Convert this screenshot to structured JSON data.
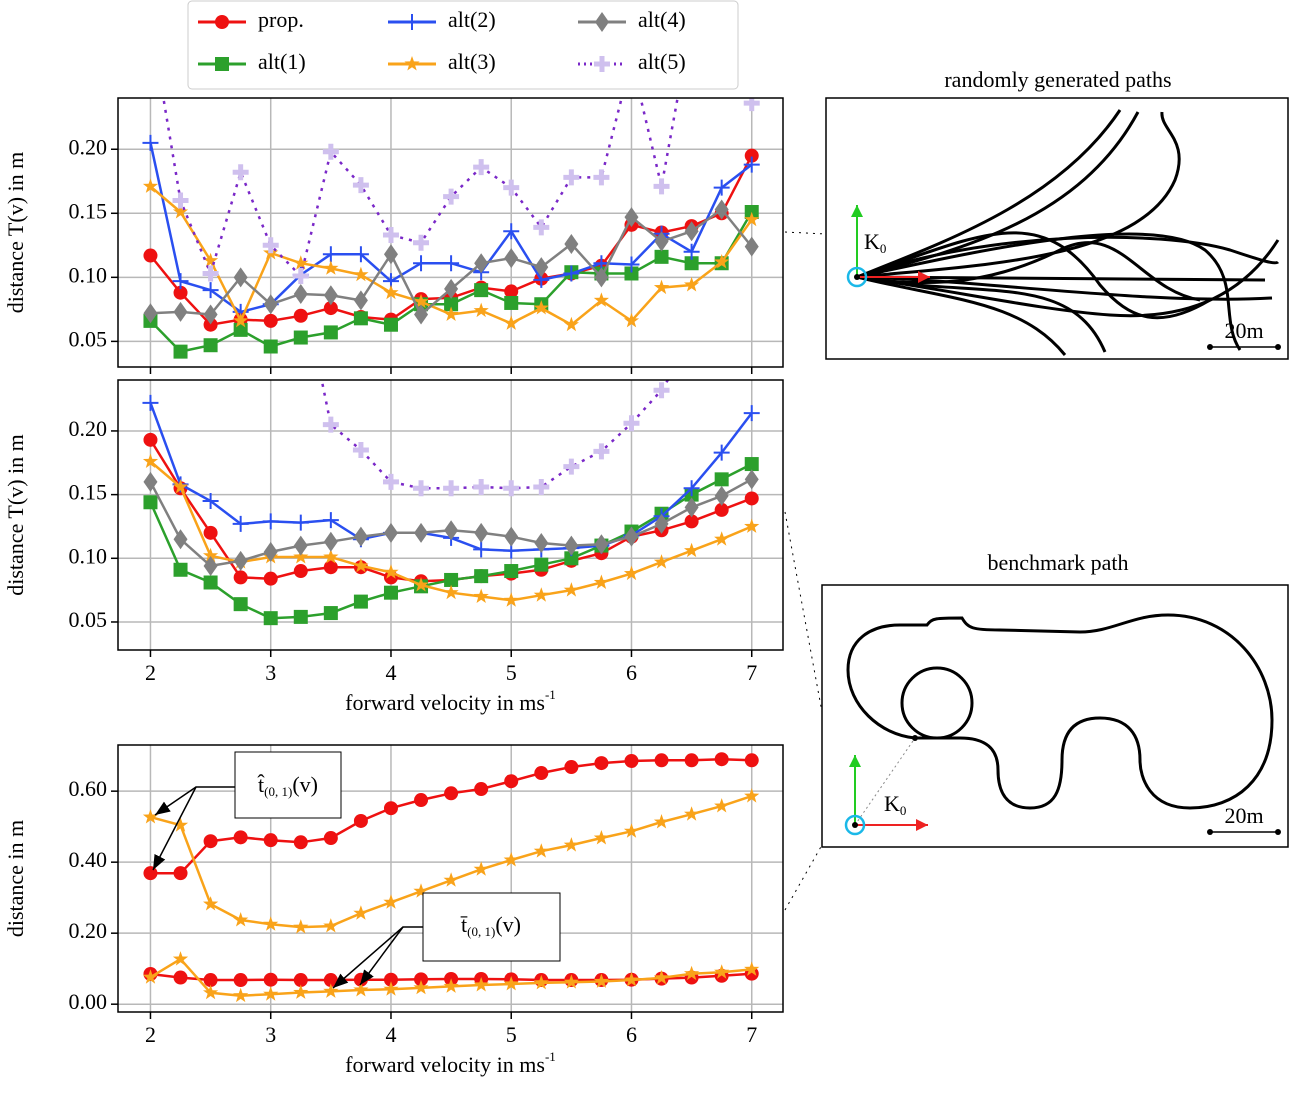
{
  "chart_data": [
    {
      "type": "line",
      "ylabel": "distance T(v) in m",
      "xlim": [
        1.73,
        7.26
      ],
      "ylim": [
        0.03,
        0.24
      ],
      "xticks": [
        2,
        3,
        4,
        5,
        6,
        7
      ],
      "show_xtick_labels": false,
      "yticks": [
        {
          "value": 0.05,
          "label": "0.05"
        },
        {
          "value": 0.1,
          "label": "0.10"
        },
        {
          "value": 0.15,
          "label": "0.15"
        },
        {
          "value": 0.2,
          "label": "0.20"
        }
      ],
      "grid": true,
      "x": [
        2,
        2.25,
        2.5,
        2.75,
        3,
        3.25,
        3.5,
        3.75,
        4,
        4.25,
        4.5,
        4.75,
        5,
        5.25,
        5.5,
        5.75,
        6,
        6.25,
        6.5,
        6.75,
        7
      ],
      "series": [
        {
          "name": "prop.",
          "color": "#ee1111",
          "marker": "circle",
          "values": [
            0.117,
            0.088,
            0.063,
            0.067,
            0.066,
            0.07,
            0.076,
            0.069,
            0.067,
            0.083,
            0.084,
            0.092,
            0.089,
            0.099,
            0.103,
            0.109,
            0.141,
            0.135,
            0.14,
            0.15,
            0.195
          ]
        },
        {
          "name": "alt(1)",
          "color": "#2ca02c",
          "marker": "square",
          "values": [
            0.066,
            0.042,
            0.047,
            0.059,
            0.046,
            0.053,
            0.057,
            0.068,
            0.063,
            0.079,
            0.079,
            0.09,
            0.08,
            0.079,
            0.104,
            0.103,
            0.103,
            0.116,
            0.111,
            0.111,
            0.151
          ]
        },
        {
          "name": "alt(2)",
          "color": "#2a4ff0",
          "marker": "plus",
          "values": [
            0.205,
            0.097,
            0.09,
            0.073,
            0.079,
            0.102,
            0.118,
            0.118,
            0.097,
            0.111,
            0.111,
            0.104,
            0.136,
            0.098,
            0.103,
            0.111,
            0.11,
            0.134,
            0.12,
            0.17,
            0.188
          ]
        },
        {
          "name": "alt(3)",
          "color": "#f9a31a",
          "marker": "star",
          "values": [
            0.171,
            0.151,
            0.113,
            0.066,
            0.119,
            0.111,
            0.107,
            0.102,
            0.088,
            0.081,
            0.071,
            0.074,
            0.064,
            0.076,
            0.063,
            0.082,
            0.066,
            0.092,
            0.094,
            0.112,
            0.145
          ]
        },
        {
          "name": "alt(4)",
          "color": "#808080",
          "marker": "diamond",
          "values": [
            0.072,
            0.073,
            0.071,
            0.1,
            0.079,
            0.087,
            0.086,
            0.082,
            0.118,
            0.071,
            0.091,
            0.111,
            0.115,
            0.108,
            0.126,
            0.1,
            0.147,
            0.128,
            0.136,
            0.153,
            0.124
          ]
        },
        {
          "name": "alt(5)",
          "color": "#7a28c8",
          "marker": "thickplus",
          "marker_color": "#cfc0ee",
          "linestyle": "dotted",
          "values": [
            0.3,
            0.16,
            0.103,
            0.182,
            0.125,
            0.101,
            0.198,
            0.172,
            0.133,
            0.127,
            0.163,
            0.186,
            0.17,
            0.139,
            0.178,
            0.178,
            0.27,
            0.171,
            0.3,
            0.3,
            0.236
          ]
        }
      ]
    },
    {
      "type": "line",
      "ylabel": "distance T(v) in m",
      "xlabel": {
        "text": "forward velocity in ms",
        "superscript": "-1"
      },
      "xlim": [
        1.73,
        7.26
      ],
      "ylim": [
        0.028,
        0.24
      ],
      "xticks": [
        2,
        3,
        4,
        5,
        6,
        7
      ],
      "yticks": [
        {
          "value": 0.05,
          "label": "0.05"
        },
        {
          "value": 0.1,
          "label": "0.10"
        },
        {
          "value": 0.15,
          "label": "0.15"
        },
        {
          "value": 0.2,
          "label": "0.20"
        }
      ],
      "grid": true,
      "x": [
        2,
        2.25,
        2.5,
        2.75,
        3,
        3.25,
        3.5,
        3.75,
        4,
        4.25,
        4.5,
        4.75,
        5,
        5.25,
        5.5,
        5.75,
        6,
        6.25,
        6.5,
        6.75,
        7
      ],
      "series": [
        {
          "color": "#ee1111",
          "marker": "circle",
          "values": [
            0.193,
            0.155,
            0.12,
            0.085,
            0.084,
            0.09,
            0.093,
            0.093,
            0.085,
            0.082,
            0.083,
            0.086,
            0.088,
            0.091,
            0.098,
            0.104,
            0.117,
            0.122,
            0.129,
            0.138,
            0.147
          ]
        },
        {
          "color": "#2ca02c",
          "marker": "square",
          "values": [
            0.144,
            0.091,
            0.081,
            0.064,
            0.053,
            0.054,
            0.057,
            0.066,
            0.073,
            0.078,
            0.083,
            0.086,
            0.09,
            0.095,
            0.1,
            0.11,
            0.121,
            0.135,
            0.15,
            0.162,
            0.174
          ]
        },
        {
          "color": "#2a4ff0",
          "marker": "plus",
          "values": [
            0.222,
            0.158,
            0.145,
            0.127,
            0.129,
            0.128,
            0.13,
            0.115,
            0.12,
            0.12,
            0.116,
            0.107,
            0.106,
            0.107,
            0.108,
            0.11,
            0.118,
            0.133,
            0.155,
            0.183,
            0.214
          ]
        },
        {
          "color": "#f9a31a",
          "marker": "star",
          "values": [
            0.176,
            0.156,
            0.102,
            0.097,
            0.101,
            0.101,
            0.101,
            0.094,
            0.089,
            0.079,
            0.073,
            0.07,
            0.067,
            0.071,
            0.075,
            0.081,
            0.088,
            0.097,
            0.106,
            0.115,
            0.125
          ]
        },
        {
          "color": "#808080",
          "marker": "diamond",
          "values": [
            0.16,
            0.115,
            0.094,
            0.098,
            0.105,
            0.11,
            0.113,
            0.117,
            0.12,
            0.12,
            0.122,
            0.12,
            0.117,
            0.112,
            0.11,
            0.111,
            0.117,
            0.127,
            0.14,
            0.149,
            0.162
          ]
        },
        {
          "color": "#7a28c8",
          "marker": "thickplus",
          "marker_color": "#cfc0ee",
          "linestyle": "dotted",
          "values": [
            null,
            null,
            null,
            null,
            null,
            0.32,
            0.205,
            0.185,
            0.16,
            0.155,
            0.155,
            0.156,
            0.155,
            0.156,
            0.172,
            0.184,
            0.206,
            0.232,
            0.27,
            null,
            null
          ]
        }
      ]
    },
    {
      "type": "line",
      "ylabel": "distance in m",
      "xlabel": {
        "text": "forward velocity in ms",
        "superscript": "-1"
      },
      "xlim": [
        1.73,
        7.26
      ],
      "ylim": [
        -0.022,
        0.73
      ],
      "xticks": [
        2,
        3,
        4,
        5,
        6,
        7
      ],
      "yticks": [
        {
          "value": 0,
          "label": "0.00"
        },
        {
          "value": 0.2,
          "label": "0.20"
        },
        {
          "value": 0.4,
          "label": "0.40"
        },
        {
          "value": 0.6,
          "label": "0.60"
        }
      ],
      "grid": true,
      "x": [
        2,
        2.25,
        2.5,
        2.75,
        3,
        3.25,
        3.5,
        3.75,
        4,
        4.25,
        4.5,
        4.75,
        5,
        5.25,
        5.5,
        5.75,
        6,
        6.25,
        6.5,
        6.75,
        7
      ],
      "series": [
        {
          "color": "#ee1111",
          "marker": "circle",
          "values": [
            0.369,
            0.369,
            0.459,
            0.47,
            0.462,
            0.456,
            0.468,
            0.516,
            0.552,
            0.575,
            0.594,
            0.606,
            0.628,
            0.651,
            0.668,
            0.679,
            0.685,
            0.687,
            0.687,
            0.69,
            0.687
          ]
        },
        {
          "color": "#f9a31a",
          "marker": "star",
          "values": [
            0.527,
            0.504,
            0.282,
            0.237,
            0.225,
            0.217,
            0.22,
            0.256,
            0.287,
            0.318,
            0.349,
            0.38,
            0.406,
            0.431,
            0.448,
            0.468,
            0.487,
            0.513,
            0.535,
            0.558,
            0.586
          ]
        },
        {
          "color": "#ee1111",
          "marker": "circle",
          "values": [
            0.085,
            0.075,
            0.068,
            0.068,
            0.069,
            0.068,
            0.068,
            0.069,
            0.069,
            0.07,
            0.071,
            0.071,
            0.07,
            0.068,
            0.068,
            0.068,
            0.069,
            0.072,
            0.075,
            0.08,
            0.086
          ]
        },
        {
          "color": "#f9a31a",
          "marker": "star",
          "values": [
            0.076,
            0.127,
            0.032,
            0.024,
            0.028,
            0.033,
            0.036,
            0.04,
            0.042,
            0.046,
            0.05,
            0.054,
            0.057,
            0.06,
            0.062,
            0.064,
            0.068,
            0.074,
            0.086,
            0.09,
            0.098
          ]
        }
      ],
      "annotations": [
        {
          "symbol": "t̂",
          "subscript": "(0, 1)",
          "suffix": "(v)"
        },
        {
          "symbol": "t̄",
          "subscript": "(0, 1)",
          "suffix": "(v)"
        }
      ]
    }
  ],
  "diagrams": [
    {
      "title": "randomly generated paths",
      "frame": {
        "symbol": "K",
        "subscript": "0"
      },
      "scale": "20m"
    },
    {
      "title": "benchmark path",
      "frame": {
        "symbol": "K",
        "subscript": "0"
      },
      "scale": "20m"
    }
  ]
}
